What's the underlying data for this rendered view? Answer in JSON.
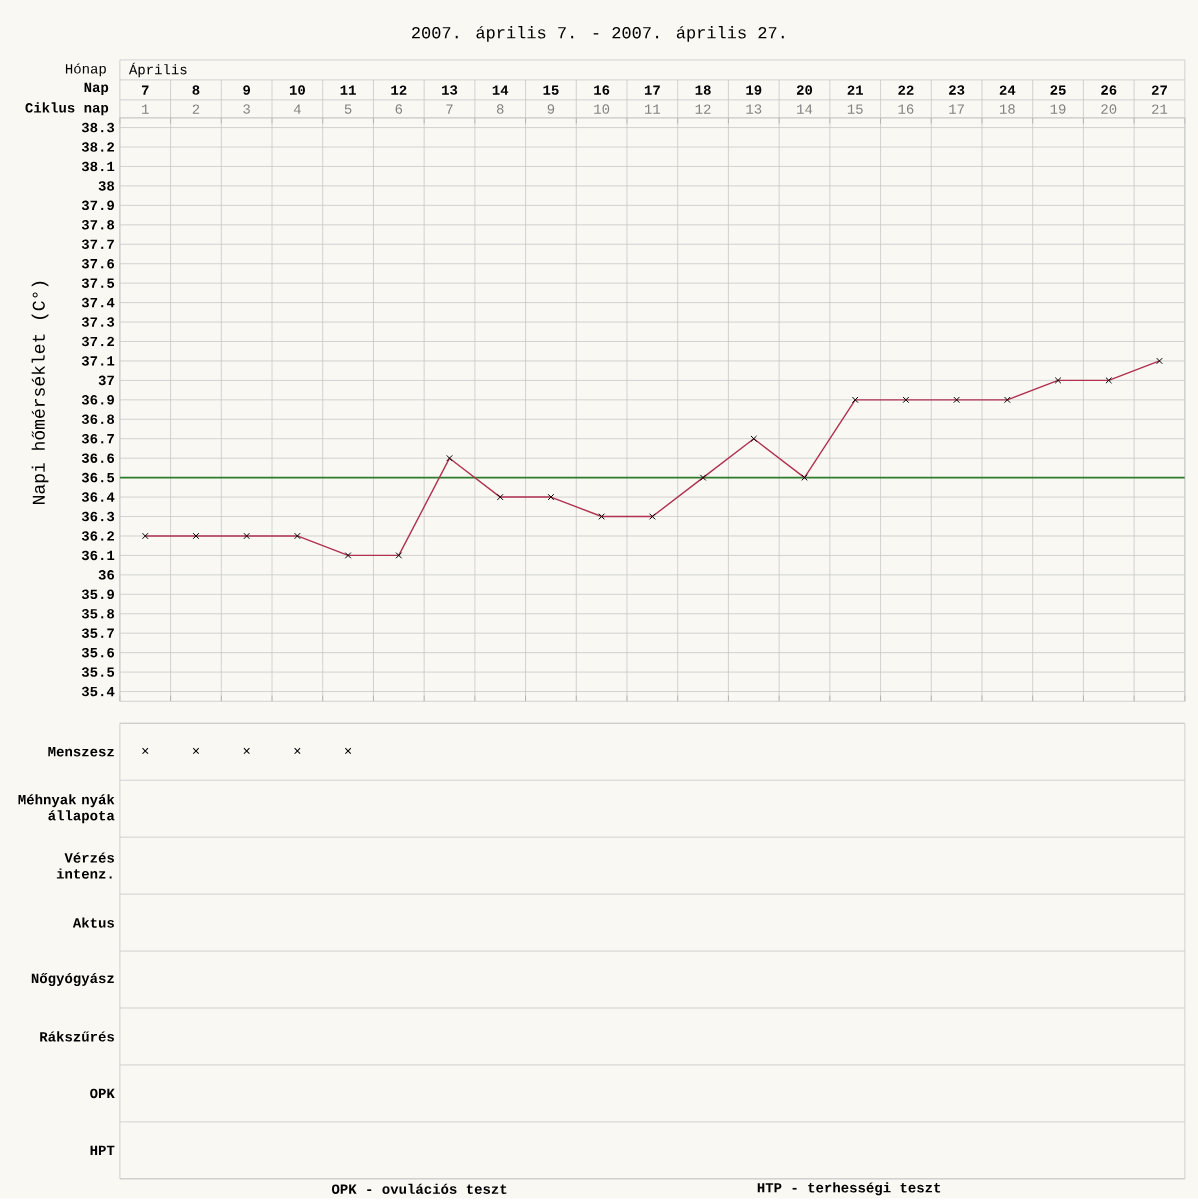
{
  "chart_data": [
    {
      "type": "line",
      "title": "2007. április 7. - 2007. április 27.",
      "xlabel": "Nap",
      "x2label": "Ciklus nap",
      "ylabel": "Napi hőmérséklet (C°)",
      "categories": [
        "7",
        "8",
        "9",
        "10",
        "11",
        "12",
        "13",
        "14",
        "15",
        "16",
        "17",
        "18",
        "19",
        "20",
        "21",
        "22",
        "23",
        "24",
        "25",
        "26",
        "27"
      ],
      "x2lim": [
        0.5,
        21.5
      ],
      "x2ticks": [
        1,
        2,
        3,
        4,
        5,
        6,
        7,
        8,
        9,
        10,
        11,
        12,
        13,
        14,
        15,
        16,
        17,
        18,
        19,
        20,
        21
      ],
      "series": [
        {
          "color": "#b03050",
          "values": [
            36.2,
            36.2,
            36.2,
            36.2,
            36.1,
            36.1,
            36.6,
            36.4,
            36.4,
            36.3,
            36.3,
            36.5,
            36.7,
            36.5,
            36.9,
            36.9,
            36.9,
            36.9,
            37,
            37,
            37.1
          ]
        }
      ],
      "ylim": [
        35.35,
        38.35
      ],
      "yticks": [
        35.4,
        35.5,
        35.6,
        35.7,
        35.8,
        35.9,
        36,
        36.1,
        36.2,
        36.3,
        36.4,
        36.5,
        36.6,
        36.7,
        36.8,
        36.9,
        37,
        37.1,
        37.2,
        37.3,
        37.4,
        37.5,
        37.6,
        37.7,
        37.8,
        37.9,
        38,
        38.1,
        38.2,
        38.3
      ],
      "ref_lines": [
        {
          "axis": "y",
          "value": 36.5,
          "color": "#2e7d2e"
        }
      ],
      "grid": true,
      "marker": "cross",
      "line_style": "solid",
      "annotations": [
        "Hónap",
        "Április"
      ]
    },
    {
      "type": "heatmap",
      "categories": [
        null,
        null,
        null,
        null,
        null,
        null,
        null,
        null,
        null,
        null,
        null,
        null,
        null,
        null,
        null,
        null,
        null,
        null,
        null,
        null,
        null
      ],
      "y_categories": [
        "Menszesz",
        "Méhnyak nyák állapota",
        "Vérzés intenz.",
        "Aktus",
        "Nőgyógyász",
        "Rákszűrés",
        "OPK",
        "HPT"
      ],
      "cells": [
        [
          null,
          null,
          null,
          null,
          null,
          null,
          null,
          null,
          null,
          null,
          null,
          null,
          null,
          null,
          null,
          null,
          null,
          null,
          null,
          null,
          null
        ],
        [
          null,
          null,
          null,
          null,
          null,
          null,
          null,
          null,
          null,
          null,
          null,
          null,
          null,
          null,
          null,
          null,
          null,
          null,
          null,
          null,
          null
        ],
        [
          null,
          null,
          null,
          null,
          null,
          null,
          null,
          null,
          null,
          null,
          null,
          null,
          null,
          null,
          null,
          null,
          null,
          null,
          null,
          null,
          null
        ],
        [
          null,
          null,
          null,
          null,
          null,
          null,
          null,
          null,
          null,
          null,
          null,
          null,
          null,
          null,
          null,
          null,
          null,
          null,
          null,
          null,
          null
        ],
        [
          null,
          null,
          null,
          null,
          null,
          null,
          null,
          null,
          null,
          null,
          null,
          null,
          null,
          null,
          null,
          null,
          null,
          null,
          null,
          null,
          null
        ],
        [
          null,
          null,
          null,
          null,
          null,
          null,
          null,
          null,
          null,
          null,
          null,
          null,
          null,
          null,
          null,
          null,
          null,
          null,
          null,
          null,
          null
        ],
        [
          null,
          null,
          null,
          null,
          null,
          null,
          null,
          null,
          null,
          null,
          null,
          null,
          null,
          null,
          null,
          null,
          null,
          null,
          null,
          null,
          null
        ],
        [
          null,
          null,
          null,
          null,
          null,
          null,
          null,
          null,
          null,
          null,
          null,
          null,
          null,
          null,
          null,
          null,
          null,
          null,
          null,
          null,
          null
        ]
      ],
      "cell_labels": [
        [
          "×",
          "×",
          "×",
          "×",
          "×",
          null,
          null,
          null,
          null,
          null,
          null,
          null,
          null,
          null,
          null,
          null,
          null,
          null,
          null,
          null,
          null
        ],
        [
          null,
          null,
          null,
          null,
          null,
          null,
          null,
          null,
          null,
          null,
          null,
          null,
          null,
          null,
          null,
          null,
          null,
          null,
          null,
          null,
          null
        ],
        [
          null,
          null,
          null,
          null,
          null,
          null,
          null,
          null,
          null,
          null,
          null,
          null,
          null,
          null,
          null,
          null,
          null,
          null,
          null,
          null,
          null
        ],
        [
          null,
          null,
          null,
          null,
          null,
          null,
          null,
          null,
          null,
          null,
          null,
          null,
          null,
          null,
          null,
          null,
          null,
          null,
          null,
          null,
          null
        ],
        [
          null,
          null,
          null,
          null,
          null,
          null,
          null,
          null,
          null,
          null,
          null,
          null,
          null,
          null,
          null,
          null,
          null,
          null,
          null,
          null,
          null
        ],
        [
          null,
          null,
          null,
          null,
          null,
          null,
          null,
          null,
          null,
          null,
          null,
          null,
          null,
          null,
          null,
          null,
          null,
          null,
          null,
          null,
          null
        ],
        [
          null,
          null,
          null,
          null,
          null,
          null,
          null,
          null,
          null,
          null,
          null,
          null,
          null,
          null,
          null,
          null,
          null,
          null,
          null,
          null,
          null
        ],
        [
          null,
          null,
          null,
          null,
          null,
          null,
          null,
          null,
          null,
          null,
          null,
          null,
          null,
          null,
          null,
          null,
          null,
          null,
          null,
          null,
          null
        ]
      ],
      "tick_labels": "y",
      "annotations": [
        "OPK - ovulációs teszt",
        "HTP - terhességi teszt"
      ]
    }
  ]
}
